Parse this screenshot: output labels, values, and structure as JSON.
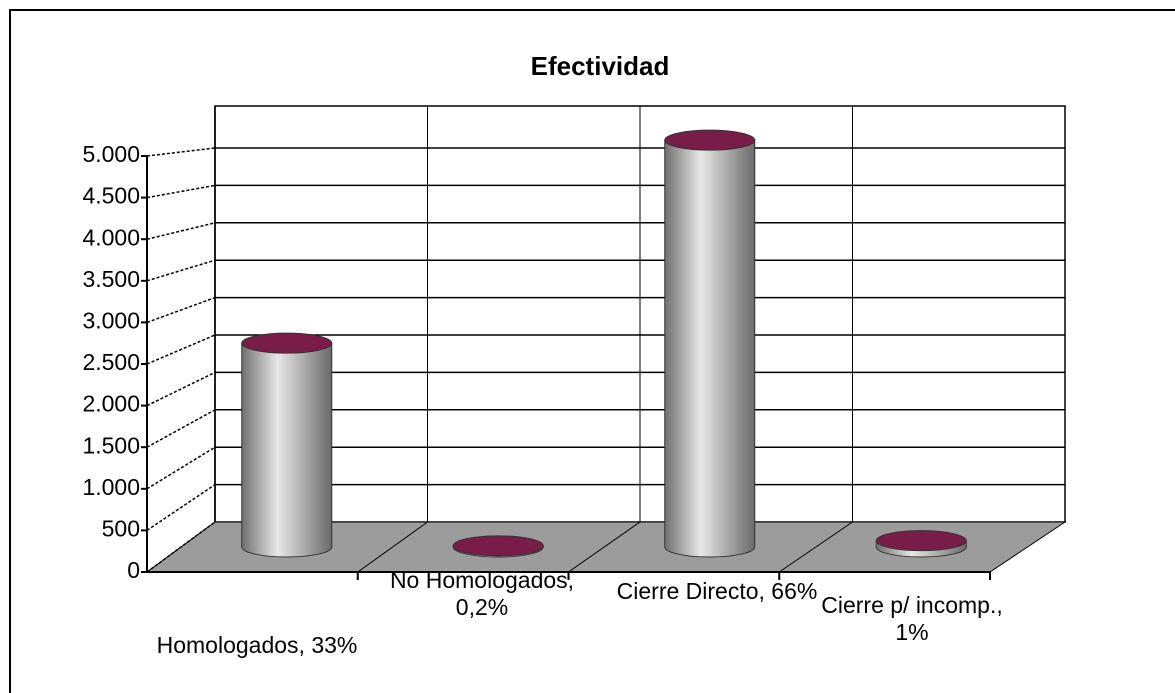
{
  "chart_data": {
    "type": "bar3d",
    "title": "Efectividad",
    "categories": [
      "Homologados, 33%",
      "No Homologados, 0,2%",
      "Cierre Directo, 66%",
      "Cierre p/ incomp., 1%"
    ],
    "values": [
      2580,
      15,
      5150,
      80
    ],
    "color": "#a6a6a6",
    "top_color": "#7a1c48",
    "ylim": [
      0,
      5000
    ],
    "yticks": [
      0,
      500,
      {
        "value": 1000,
        "label": "1.000"
      },
      {
        "value": 1500,
        "label": "1.500"
      },
      {
        "value": 2000,
        "label": "2.000"
      },
      {
        "value": 2500,
        "label": "2.500"
      },
      {
        "value": 3000,
        "label": "3.000"
      },
      {
        "value": 3500,
        "label": "3.500"
      },
      {
        "value": 4000,
        "label": "4.000"
      },
      {
        "value": 4500,
        "label": "4.500"
      },
      {
        "value": 5000,
        "label": "5.000"
      }
    ],
    "grid": true
  }
}
